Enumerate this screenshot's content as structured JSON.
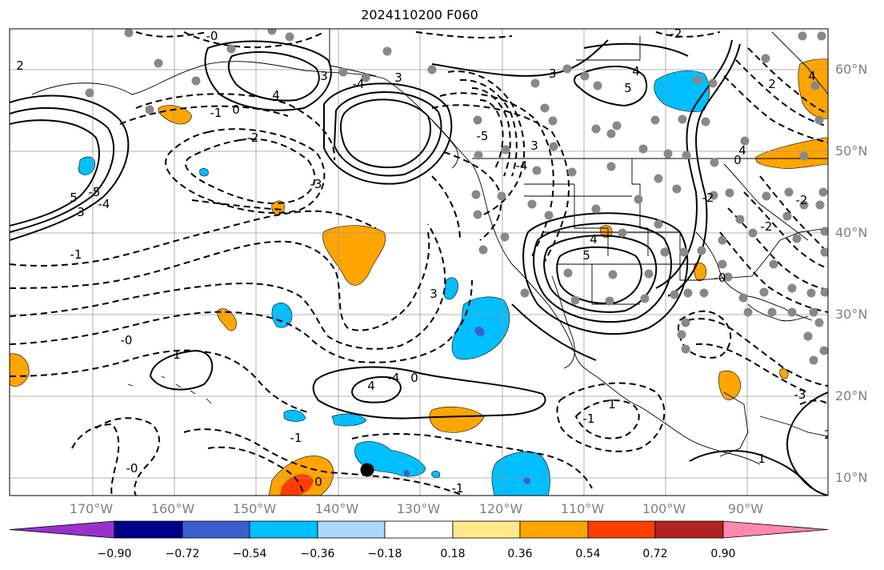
{
  "title": "2024110200 F060",
  "map": {
    "projection": "PlateCarree",
    "lon_range": [
      -180,
      -80
    ],
    "lat_range": [
      8,
      65
    ],
    "lat_labels": [
      "60°N",
      "50°N",
      "40°N",
      "30°N",
      "20°N",
      "10°N"
    ],
    "lon_labels": [
      "170°W",
      "160°W",
      "150°W",
      "140°W",
      "130°W",
      "120°W",
      "110°W",
      "100°W",
      "90°W"
    ],
    "contour_labels": [
      "-0",
      "2",
      "-1",
      "3",
      "4",
      "0",
      "-2",
      "5",
      "3",
      "-4",
      "-5",
      "-3",
      "4",
      "5",
      "-2",
      "2",
      "4",
      "-1",
      "-0",
      "1",
      "4",
      "-4",
      "0",
      "3",
      "4",
      "5",
      "-4",
      "3",
      "-5",
      "-3",
      "-4",
      "3",
      "4",
      "-2",
      "0",
      "-0",
      "-2",
      "1",
      "-1",
      "-0",
      "1",
      "2",
      "-1",
      "-3",
      "-2",
      "0",
      "-1"
    ],
    "black_circle_marker": "tropical cyclone symbol",
    "gray_dots": "station markers"
  },
  "colorbar": {
    "ticks": [
      "−0.90",
      "−0.72",
      "−0.54",
      "−0.36",
      "−0.18",
      "0.18",
      "0.36",
      "0.54",
      "0.72",
      "0.90"
    ],
    "colors": [
      "#9932cc",
      "#00008b",
      "#3a5fcd",
      "#00bfff",
      "#add8ff",
      "#ffffff",
      "#ffe98a",
      "#ffa500",
      "#ff3e00",
      "#b22222",
      "#ff88b0"
    ],
    "extend": "both"
  }
}
